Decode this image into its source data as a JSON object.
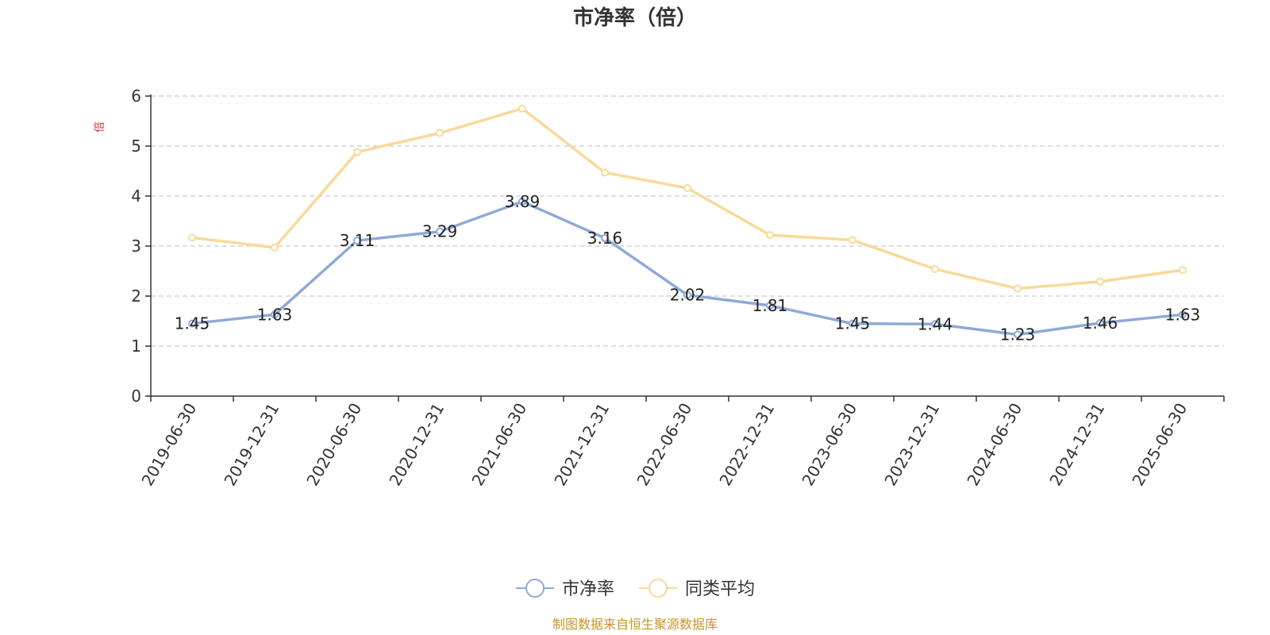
{
  "chart_data": {
    "type": "line",
    "title": "市净率（倍）",
    "ylabel": "倍",
    "ylim": [
      0,
      6
    ],
    "yticks": [
      0,
      1,
      2,
      3,
      4,
      5,
      6
    ],
    "grid": true,
    "legend_position": "bottom",
    "categories": [
      "2019-06-30",
      "2019-12-31",
      "2020-06-30",
      "2020-12-31",
      "2021-06-30",
      "2021-12-31",
      "2022-06-30",
      "2022-12-31",
      "2023-06-30",
      "2023-12-31",
      "2024-06-30",
      "2024-12-31",
      "2025-06-30"
    ],
    "series": [
      {
        "name": "市净率",
        "color": "#8eaad8",
        "values": [
          1.45,
          1.63,
          3.11,
          3.29,
          3.89,
          3.16,
          2.02,
          1.81,
          1.45,
          1.44,
          1.23,
          1.46,
          1.63
        ],
        "labels": [
          "1.45",
          "1.63",
          "3.11",
          "3.29",
          "3.89",
          "3.16",
          "2.02",
          "1.81",
          "1.45",
          "1.44",
          "1.23",
          "1.46",
          "1.63"
        ]
      },
      {
        "name": "同类平均",
        "color": "#f9d99a",
        "values": [
          3.17,
          2.97,
          4.88,
          5.26,
          5.75,
          4.47,
          4.16,
          3.22,
          3.12,
          2.54,
          2.15,
          2.29,
          2.52
        ]
      }
    ],
    "source": "制图数据来自恒生聚源数据库",
    "colors": {
      "axis": "#333333",
      "grid": "#cccccc",
      "ylabel": "#e03030",
      "source": "#c8962a"
    }
  }
}
